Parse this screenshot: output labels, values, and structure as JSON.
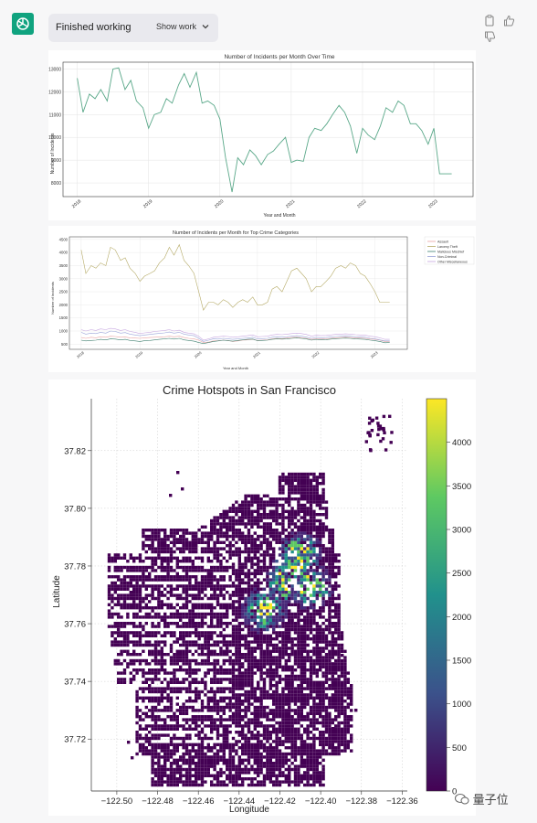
{
  "status": {
    "label": "Finished working",
    "show_work": "Show work"
  },
  "icons": {
    "avatar": "chatgpt-logo-icon",
    "copy": "copy-icon",
    "thumbs_up": "thumbs-up-icon",
    "thumbs_down": "thumbs-down-icon",
    "expand": "chevron-down-icon"
  },
  "colors": {
    "line": "#5aa889",
    "larceny": "#b5aa66",
    "assault": "#e8a3a3",
    "malicious": "#3f7f6f",
    "noncriminal": "#9aa4d8",
    "other": "#c6a6e0"
  },
  "watermark": "量子位",
  "chart_data": [
    {
      "type": "line",
      "title": "Number of Incidents per Month Over Time",
      "xlabel": "Year and Month",
      "ylabel": "Number of Incidents",
      "x_ticks": [
        "2018",
        "2019",
        "2020",
        "2021",
        "2022",
        "2023"
      ],
      "y_ticks": [
        8000,
        9000,
        10000,
        11000,
        12000,
        13000
      ],
      "ylim": [
        7400,
        13300
      ],
      "xlim": [
        2017.8,
        2023.55
      ],
      "x": [
        2018.0,
        2018.08,
        2018.17,
        2018.25,
        2018.33,
        2018.42,
        2018.5,
        2018.58,
        2018.67,
        2018.75,
        2018.83,
        2018.92,
        2019.0,
        2019.08,
        2019.17,
        2019.25,
        2019.33,
        2019.42,
        2019.5,
        2019.58,
        2019.67,
        2019.75,
        2019.83,
        2019.92,
        2020.0,
        2020.08,
        2020.17,
        2020.25,
        2020.33,
        2020.42,
        2020.5,
        2020.58,
        2020.67,
        2020.75,
        2020.83,
        2020.92,
        2021.0,
        2021.08,
        2021.17,
        2021.25,
        2021.33,
        2021.42,
        2021.5,
        2021.58,
        2021.67,
        2021.75,
        2021.83,
        2021.92,
        2022.0,
        2022.08,
        2022.17,
        2022.25,
        2022.33,
        2022.42,
        2022.5,
        2022.58,
        2022.67,
        2022.75,
        2022.83,
        2022.92,
        2023.0,
        2023.08,
        2023.17,
        2023.25
      ],
      "values": [
        12600,
        11100,
        11900,
        11700,
        12100,
        11600,
        13000,
        13050,
        12100,
        12500,
        11600,
        11300,
        10400,
        11000,
        11100,
        11700,
        11500,
        12300,
        12800,
        12200,
        12850,
        11500,
        11600,
        11400,
        10800,
        9100,
        7600,
        9100,
        8800,
        9450,
        9200,
        8800,
        9250,
        9400,
        9700,
        10000,
        8900,
        9000,
        8950,
        10000,
        10400,
        10300,
        10600,
        11000,
        11400,
        11100,
        10500,
        9300,
        10400,
        10100,
        9900,
        10500,
        11300,
        11100,
        11600,
        11400,
        10600,
        10600,
        10300,
        9700,
        10400,
        8400,
        8400,
        8400
      ]
    },
    {
      "type": "line",
      "title": "Number of Incidents per Month for Top Crime Categories",
      "xlabel": "Year and Month",
      "ylabel": "Number of Incidents",
      "x_ticks": [
        "2018",
        "2019",
        "2020",
        "2021",
        "2022",
        "2023"
      ],
      "y_ticks": [
        500,
        1000,
        1500,
        2000,
        2500,
        3000,
        3500,
        4000,
        4500
      ],
      "ylim": [
        300,
        4600
      ],
      "xlim": [
        2017.8,
        2023.55
      ],
      "legend": [
        "Assault",
        "Larceny Theft",
        "Malicious Mischief",
        "Non-Criminal",
        "Other Miscellaneous"
      ],
      "legend_position": "upper-right",
      "x": [
        2018.0,
        2018.08,
        2018.17,
        2018.25,
        2018.33,
        2018.42,
        2018.5,
        2018.58,
        2018.67,
        2018.75,
        2018.83,
        2018.92,
        2019.0,
        2019.08,
        2019.17,
        2019.25,
        2019.33,
        2019.42,
        2019.5,
        2019.58,
        2019.67,
        2019.75,
        2019.83,
        2019.92,
        2020.0,
        2020.08,
        2020.17,
        2020.25,
        2020.33,
        2020.42,
        2020.5,
        2020.58,
        2020.67,
        2020.75,
        2020.83,
        2020.92,
        2021.0,
        2021.08,
        2021.17,
        2021.25,
        2021.33,
        2021.42,
        2021.5,
        2021.58,
        2021.67,
        2021.75,
        2021.83,
        2021.92,
        2022.0,
        2022.08,
        2022.17,
        2022.25,
        2022.33,
        2022.42,
        2022.5,
        2022.58,
        2022.67,
        2022.75,
        2022.83,
        2022.92,
        2023.0,
        2023.08,
        2023.17,
        2023.25
      ],
      "series": [
        {
          "name": "Larceny Theft",
          "values": [
            4100,
            3200,
            3500,
            3400,
            3600,
            3500,
            4200,
            4100,
            3700,
            3800,
            3400,
            3200,
            2900,
            3100,
            3200,
            3300,
            3600,
            3800,
            4200,
            3900,
            4300,
            3700,
            3500,
            3200,
            2500,
            1800,
            2100,
            2100,
            2000,
            2200,
            2100,
            1900,
            2100,
            2200,
            2100,
            2300,
            2000,
            2000,
            2100,
            2600,
            2700,
            2500,
            2900,
            3300,
            3400,
            3200,
            3000,
            2500,
            2700,
            2700,
            2900,
            3100,
            3400,
            3500,
            3400,
            3600,
            3500,
            3200,
            3100,
            2800,
            2500,
            2100,
            2100,
            2100
          ]
        },
        {
          "name": "Assault",
          "values": [
            750,
            720,
            760,
            740,
            780,
            760,
            800,
            790,
            760,
            770,
            740,
            730,
            720,
            740,
            750,
            760,
            770,
            780,
            800,
            780,
            800,
            750,
            720,
            700,
            650,
            560,
            580,
            620,
            630,
            650,
            640,
            600,
            620,
            650,
            660,
            680,
            640,
            650,
            660,
            700,
            720,
            710,
            730,
            750,
            760,
            740,
            720,
            680,
            700,
            690,
            700,
            720,
            740,
            750,
            760,
            750,
            740,
            730,
            720,
            690,
            680,
            650,
            600,
            600
          ]
        },
        {
          "name": "Malicious Mischief",
          "values": [
            650,
            620,
            640,
            650,
            680,
            660,
            700,
            690,
            660,
            680,
            640,
            620,
            600,
            630,
            640,
            660,
            680,
            700,
            720,
            690,
            720,
            660,
            640,
            610,
            560,
            520,
            560,
            600,
            620,
            650,
            630,
            610,
            640,
            660,
            680,
            690,
            630,
            640,
            650,
            680,
            700,
            690,
            700,
            720,
            740,
            720,
            700,
            650,
            680,
            660,
            670,
            690,
            710,
            720,
            730,
            720,
            700,
            690,
            680,
            650,
            630,
            600,
            550,
            560
          ]
        },
        {
          "name": "Non-Criminal",
          "values": [
            950,
            880,
            920,
            900,
            950,
            920,
            1000,
            980,
            920,
            940,
            880,
            850,
            820,
            850,
            870,
            890,
            910,
            930,
            960,
            920,
            950,
            880,
            850,
            820,
            720,
            600,
            650,
            700,
            690,
            720,
            700,
            680,
            700,
            720,
            730,
            760,
            700,
            710,
            720,
            760,
            780,
            770,
            780,
            800,
            820,
            800,
            770,
            720,
            760,
            740,
            750,
            770,
            790,
            800,
            810,
            800,
            780,
            770,
            760,
            720,
            700,
            660,
            620,
            620
          ]
        },
        {
          "name": "Other Miscellaneous",
          "values": [
            1050,
            1000,
            1050,
            1020,
            1080,
            1050,
            1100,
            1080,
            1020,
            1050,
            980,
            950,
            900,
            930,
            950,
            980,
            1000,
            1020,
            1050,
            1000,
            1030,
            950,
            920,
            890,
            800,
            650,
            700,
            760,
            780,
            800,
            790,
            760,
            780,
            800,
            820,
            850,
            780,
            790,
            800,
            850,
            870,
            860,
            880,
            900,
            920,
            900,
            870,
            800,
            840,
            820,
            830,
            850,
            870,
            880,
            890,
            880,
            860,
            850,
            840,
            800,
            780,
            740,
            680,
            680
          ]
        }
      ]
    },
    {
      "type": "heatmap",
      "title": "Crime Hotspots in San Francisco",
      "xlabel": "Longitude",
      "ylabel": "Latitude",
      "x_ticks": [
        "−122.50",
        "−122.48",
        "−122.46",
        "−122.44",
        "−122.42",
        "−122.40",
        "−122.38",
        "−122.36"
      ],
      "y_ticks": [
        "37.72",
        "37.74",
        "37.76",
        "37.78",
        "37.80",
        "37.82"
      ],
      "xlim": [
        -122.5125,
        -122.3575
      ],
      "ylim": [
        37.702,
        37.838
      ],
      "colorbar_ticks": [
        "0",
        "500",
        "1000",
        "1500",
        "2000",
        "2500",
        "3000",
        "3500",
        "4000"
      ],
      "colorbar_range": [
        0,
        4500
      ],
      "colormap": "viridis"
    }
  ]
}
